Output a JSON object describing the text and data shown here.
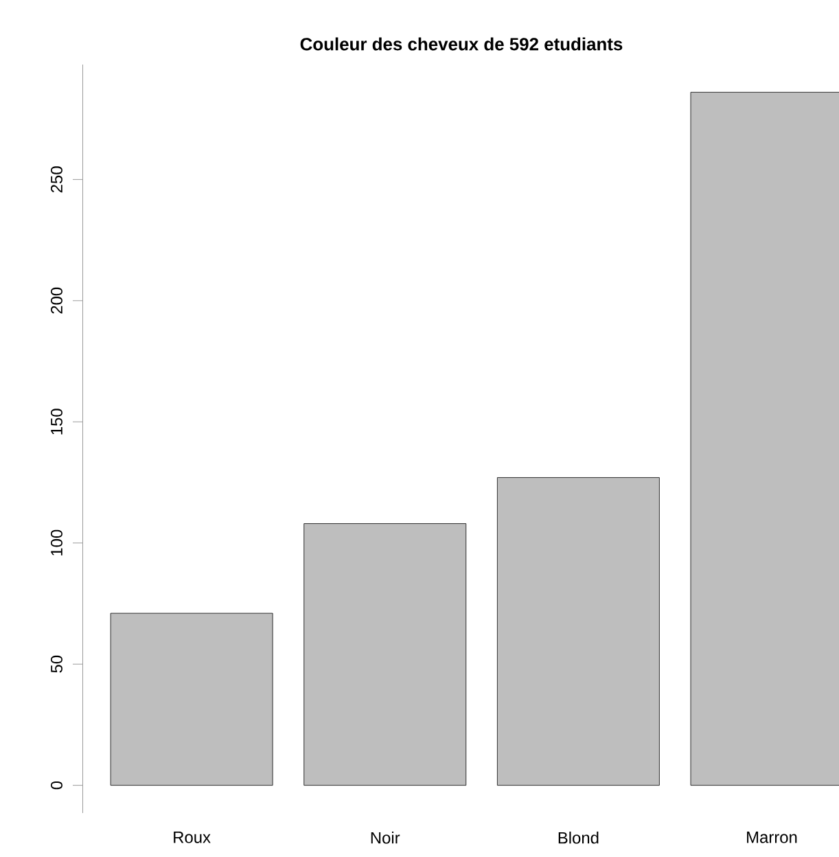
{
  "chart_data": {
    "type": "bar",
    "title": "Couleur des cheveux de 592 etudiants",
    "categories": [
      "Roux",
      "Noir",
      "Blond",
      "Marron"
    ],
    "values": [
      71,
      108,
      127,
      286
    ],
    "color": "#bebebe",
    "ylim": [
      -11.44,
      297.44
    ],
    "yticks": [
      0,
      50,
      100,
      150,
      200,
      250
    ]
  }
}
